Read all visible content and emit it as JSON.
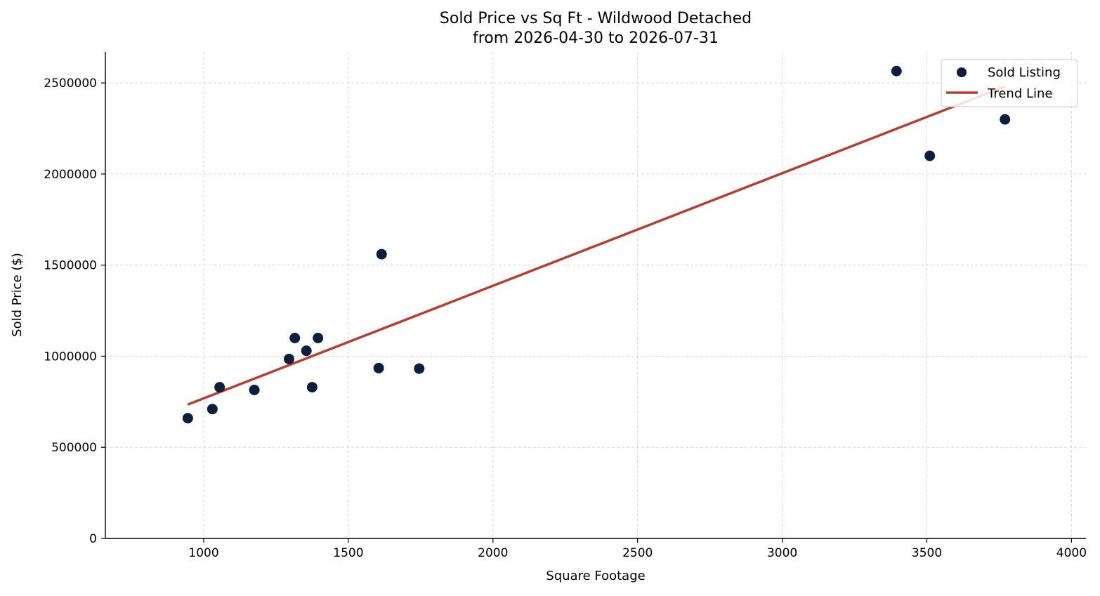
{
  "colors": {
    "points": "#0d1f3a",
    "trend": "#b63e31",
    "grid": "#d9d9d9"
  },
  "chart_data": {
    "type": "scatter",
    "title": "Sold Price vs Sq Ft - Wildwood Detached",
    "subtitle": "from 2026-04-30 to 2026-07-31",
    "xlabel": "Square Footage",
    "ylabel": "Sold Price ($)",
    "xlim": [
      660,
      4050
    ],
    "ylim": [
      0,
      2670000
    ],
    "xticks": [
      1000,
      1500,
      2000,
      2500,
      3000,
      3500,
      4000
    ],
    "yticks": [
      0,
      500000,
      1000000,
      1500000,
      2000000,
      2500000
    ],
    "grid": true,
    "legend_position": "top-right",
    "series": [
      {
        "name": "Sold Listing",
        "kind": "scatter",
        "points": [
          {
            "x": 945,
            "y": 660000
          },
          {
            "x": 1030,
            "y": 710000
          },
          {
            "x": 1055,
            "y": 830000
          },
          {
            "x": 1175,
            "y": 815000
          },
          {
            "x": 1295,
            "y": 985000
          },
          {
            "x": 1315,
            "y": 1100000
          },
          {
            "x": 1355,
            "y": 1030000
          },
          {
            "x": 1375,
            "y": 830000
          },
          {
            "x": 1395,
            "y": 1100000
          },
          {
            "x": 1605,
            "y": 935000
          },
          {
            "x": 1615,
            "y": 1560000
          },
          {
            "x": 1745,
            "y": 932000
          },
          {
            "x": 3395,
            "y": 2565000
          },
          {
            "x": 3510,
            "y": 2100000
          },
          {
            "x": 3770,
            "y": 2300000
          }
        ]
      },
      {
        "name": "Trend Line",
        "kind": "line",
        "points": [
          {
            "x": 945,
            "y": 735000
          },
          {
            "x": 3770,
            "y": 2480000
          }
        ]
      }
    ]
  }
}
